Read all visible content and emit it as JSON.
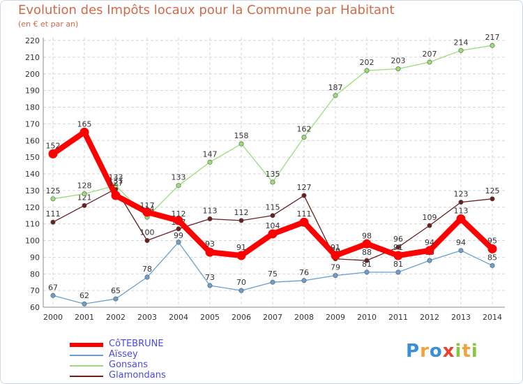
{
  "chart_data": {
    "type": "line",
    "title": "Evolution des Impôts locaux pour la Commune par Habitant",
    "subtitle": "(en € et par an)",
    "categories": [
      "2000",
      "2001",
      "2002",
      "2003",
      "2004",
      "2005",
      "2006",
      "2007",
      "2008",
      "2009",
      "2010",
      "2011",
      "2012",
      "2013",
      "2014"
    ],
    "ylim": [
      60,
      220
    ],
    "yticks": [
      60,
      70,
      80,
      90,
      100,
      110,
      120,
      130,
      140,
      150,
      160,
      170,
      180,
      190,
      200,
      210,
      220
    ],
    "grid": true,
    "legend_position": "bottom-left",
    "series": [
      {
        "name": "Glamondans",
        "color": "#6a1f1f",
        "values": [
          111,
          121,
          131,
          100,
          107,
          113,
          112,
          115,
          127,
          89,
          88,
          96,
          109,
          123,
          125
        ],
        "labels": [
          "111",
          "121",
          "131",
          "100",
          "107",
          "113",
          "112",
          "115",
          "127",
          "89",
          "88",
          "96",
          "109",
          "123",
          "125"
        ]
      },
      {
        "name": "Gonsans",
        "color": "#99dd77",
        "values": [
          125,
          128,
          133,
          114,
          133,
          147,
          158,
          135,
          162,
          187,
          202,
          203,
          207,
          214,
          217
        ],
        "labels": [
          "125",
          "128",
          "133",
          "114",
          "133",
          "147",
          "158",
          "135",
          "162",
          "187",
          "202",
          "203",
          "207",
          "214",
          "217"
        ]
      },
      {
        "name": "Aïssey",
        "color": "#6a9fd0",
        "values": [
          67,
          62,
          65,
          78,
          99,
          73,
          70,
          75,
          76,
          79,
          81,
          81,
          88,
          94,
          85
        ],
        "labels": [
          "67",
          "62",
          "65",
          "78",
          "99",
          "73",
          "70",
          "75",
          "76",
          "79",
          "81",
          "81",
          "88",
          "94",
          "85"
        ]
      },
      {
        "name": "CôTEBRUNE",
        "color": "#ff0000",
        "values": [
          152,
          165,
          127,
          117,
          112,
          93,
          91,
          104,
          111,
          91,
          98,
          91,
          94,
          113,
          95
        ],
        "labels": [
          "152",
          "165",
          "127",
          "117",
          "112",
          "93",
          "91",
          "104",
          "111",
          "91",
          "98",
          "91",
          "94",
          "113",
          "95"
        ]
      }
    ]
  },
  "legend": [
    {
      "name": "CôTEBRUNE",
      "color": "#ff0000"
    },
    {
      "name": "Aïssey",
      "color": "#6a9fd0"
    },
    {
      "name": "Gonsans",
      "color": "#99dd77"
    },
    {
      "name": "Glamondans",
      "color": "#6a1f1f"
    }
  ],
  "brand": {
    "letters": [
      {
        "ch": "P",
        "color": "#3b8fd6"
      },
      {
        "ch": "r",
        "color": "#f2a23a"
      },
      {
        "ch": "o",
        "color": "#3b8fd6"
      },
      {
        "ch": "x",
        "color": "#e8432b"
      },
      {
        "ch": "i",
        "color": "#8ac53e"
      },
      {
        "ch": "t",
        "color": "#f2a23a"
      },
      {
        "ch": "i",
        "color": "#8ac53e"
      }
    ]
  }
}
